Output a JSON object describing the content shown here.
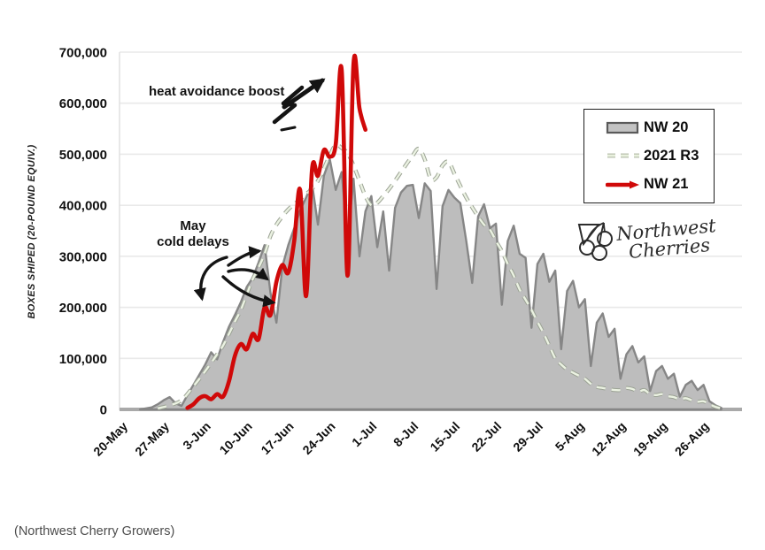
{
  "page": {
    "caption": "(Northwest Cherry Growers)"
  },
  "logo": {
    "line1": "Northwest",
    "line2": "Cherries"
  },
  "annotations": {
    "heat": "heat avoidance boost",
    "may_line1": "May",
    "may_line2": "cold delays"
  },
  "chart_data": {
    "type": "area",
    "title": "",
    "xlabel": "",
    "ylabel": "BOXES SHIPED (20-POUND EQUIV.)",
    "ylim": [
      0,
      700000
    ],
    "ytick_step": 100000,
    "yticks": [
      0,
      100000,
      200000,
      300000,
      400000,
      500000,
      600000,
      700000
    ],
    "grid": true,
    "legend_position": "upper right",
    "xticks": [
      {
        "label": "20-May",
        "day": 0
      },
      {
        "label": "27-May",
        "day": 7
      },
      {
        "label": "3-Jun",
        "day": 14
      },
      {
        "label": "10-Jun",
        "day": 21
      },
      {
        "label": "17-Jun",
        "day": 28
      },
      {
        "label": "24-Jun",
        "day": 35
      },
      {
        "label": "1-Jul",
        "day": 42
      },
      {
        "label": "8-Jul",
        "day": 49
      },
      {
        "label": "15-Jul",
        "day": 56
      },
      {
        "label": "22-Jul",
        "day": 63
      },
      {
        "label": "29-Jul",
        "day": 70
      },
      {
        "label": "5-Aug",
        "day": 77
      },
      {
        "label": "12-Aug",
        "day": 84
      },
      {
        "label": "19-Aug",
        "day": 91
      },
      {
        "label": "26-Aug",
        "day": 98
      }
    ],
    "annotations": [
      {
        "text": "heat avoidance boost",
        "target": "NW 21 late-June peaks"
      },
      {
        "text": "May cold delays",
        "lines": [
          "May",
          "cold delays"
        ],
        "target": "early-June NW 21 ramp"
      }
    ],
    "series": [
      {
        "name": "NW 20",
        "type": "area",
        "fill": "#bdbdbd",
        "stroke": "#868686",
        "smooth": false,
        "points": [
          [
            3,
            0
          ],
          [
            5,
            4000
          ],
          [
            6,
            10000
          ],
          [
            7,
            18000
          ],
          [
            8,
            24000
          ],
          [
            9,
            12000
          ],
          [
            10,
            7000
          ],
          [
            11,
            28000
          ],
          [
            12,
            48000
          ],
          [
            13,
            68000
          ],
          [
            14,
            88000
          ],
          [
            15,
            112000
          ],
          [
            16,
            98000
          ],
          [
            17,
            132000
          ],
          [
            18,
            162000
          ],
          [
            19,
            185000
          ],
          [
            20,
            210000
          ],
          [
            21,
            240000
          ],
          [
            22,
            258000
          ],
          [
            23,
            288000
          ],
          [
            24,
            322000
          ],
          [
            25,
            228000
          ],
          [
            26,
            170000
          ],
          [
            27,
            280000
          ],
          [
            28,
            322000
          ],
          [
            29,
            355000
          ],
          [
            30,
            390000
          ],
          [
            31,
            415000
          ],
          [
            32,
            442000
          ],
          [
            33,
            362000
          ],
          [
            34,
            458000
          ],
          [
            35,
            490000
          ],
          [
            36,
            430000
          ],
          [
            37,
            465000
          ],
          [
            38,
            330000
          ],
          [
            39,
            452000
          ],
          [
            40,
            300000
          ],
          [
            41,
            388000
          ],
          [
            42,
            418000
          ],
          [
            43,
            318000
          ],
          [
            44,
            388000
          ],
          [
            45,
            272000
          ],
          [
            46,
            395000
          ],
          [
            47,
            425000
          ],
          [
            48,
            438000
          ],
          [
            49,
            440000
          ],
          [
            50,
            375000
          ],
          [
            51,
            443000
          ],
          [
            52,
            428000
          ],
          [
            53,
            236000
          ],
          [
            54,
            398000
          ],
          [
            55,
            430000
          ],
          [
            56,
            415000
          ],
          [
            57,
            404000
          ],
          [
            58,
            330000
          ],
          [
            59,
            248000
          ],
          [
            60,
            378000
          ],
          [
            61,
            402000
          ],
          [
            62,
            355000
          ],
          [
            63,
            364000
          ],
          [
            64,
            205000
          ],
          [
            65,
            330000
          ],
          [
            66,
            360000
          ],
          [
            67,
            305000
          ],
          [
            68,
            297000
          ],
          [
            69,
            160000
          ],
          [
            70,
            285000
          ],
          [
            71,
            305000
          ],
          [
            72,
            250000
          ],
          [
            73,
            272000
          ],
          [
            74,
            118000
          ],
          [
            75,
            232000
          ],
          [
            76,
            252000
          ],
          [
            77,
            200000
          ],
          [
            78,
            216000
          ],
          [
            79,
            85000
          ],
          [
            80,
            170000
          ],
          [
            81,
            188000
          ],
          [
            82,
            142000
          ],
          [
            83,
            158000
          ],
          [
            84,
            60000
          ],
          [
            85,
            108000
          ],
          [
            86,
            124000
          ],
          [
            87,
            92000
          ],
          [
            88,
            104000
          ],
          [
            89,
            36000
          ],
          [
            90,
            75000
          ],
          [
            91,
            85000
          ],
          [
            92,
            60000
          ],
          [
            93,
            70000
          ],
          [
            94,
            25000
          ],
          [
            95,
            48000
          ],
          [
            96,
            56000
          ],
          [
            97,
            38000
          ],
          [
            98,
            48000
          ],
          [
            99,
            16000
          ],
          [
            100,
            8000
          ],
          [
            101,
            3000
          ]
        ]
      },
      {
        "name": "2021 R3",
        "type": "dashed-line",
        "stroke": "#9ba294",
        "overlay": "#ebf2e2",
        "smooth": true,
        "points": [
          [
            6,
            2000
          ],
          [
            8,
            8000
          ],
          [
            10,
            18000
          ],
          [
            12,
            45000
          ],
          [
            14,
            75000
          ],
          [
            16,
            108000
          ],
          [
            17,
            125000
          ],
          [
            18,
            148000
          ],
          [
            19,
            172000
          ],
          [
            20,
            195000
          ],
          [
            21,
            225000
          ],
          [
            22,
            255000
          ],
          [
            23,
            278000
          ],
          [
            24,
            305000
          ],
          [
            25,
            340000
          ],
          [
            26,
            362000
          ],
          [
            27,
            378000
          ],
          [
            28,
            392000
          ],
          [
            29,
            402000
          ],
          [
            30,
            412000
          ],
          [
            31,
            422000
          ],
          [
            32,
            432000
          ],
          [
            33,
            448000
          ],
          [
            34,
            472000
          ],
          [
            35,
            498000
          ],
          [
            36,
            518000
          ],
          [
            37,
            512000
          ],
          [
            38,
            502000
          ],
          [
            39,
            478000
          ],
          [
            40,
            448000
          ],
          [
            41,
            418000
          ],
          [
            42,
            400000
          ],
          [
            43,
            405000
          ],
          [
            44,
            418000
          ],
          [
            45,
            432000
          ],
          [
            46,
            448000
          ],
          [
            47,
            465000
          ],
          [
            48,
            482000
          ],
          [
            49,
            498000
          ],
          [
            50,
            511000
          ],
          [
            51,
            490000
          ],
          [
            52,
            452000
          ],
          [
            53,
            455000
          ],
          [
            54,
            478000
          ],
          [
            55,
            485000
          ],
          [
            56,
            462000
          ],
          [
            57,
            438000
          ],
          [
            58,
            415000
          ],
          [
            59,
            396000
          ],
          [
            60,
            378000
          ],
          [
            61,
            362000
          ],
          [
            62,
            352000
          ],
          [
            63,
            330000
          ],
          [
            64,
            310000
          ],
          [
            65,
            285000
          ],
          [
            66,
            262000
          ],
          [
            67,
            235000
          ],
          [
            68,
            215000
          ],
          [
            69,
            195000
          ],
          [
            70,
            172000
          ],
          [
            71,
            150000
          ],
          [
            72,
            125000
          ],
          [
            73,
            100000
          ],
          [
            74,
            88000
          ],
          [
            75,
            78000
          ],
          [
            76,
            72000
          ],
          [
            77,
            66000
          ],
          [
            78,
            60000
          ],
          [
            79,
            50000
          ],
          [
            80,
            44000
          ],
          [
            81,
            42000
          ],
          [
            82,
            40000
          ],
          [
            83,
            38000
          ],
          [
            84,
            38000
          ],
          [
            85,
            42000
          ],
          [
            86,
            40000
          ],
          [
            87,
            35000
          ],
          [
            88,
            38000
          ],
          [
            89,
            30000
          ],
          [
            90,
            28000
          ],
          [
            91,
            30000
          ],
          [
            92,
            26000
          ],
          [
            93,
            24000
          ],
          [
            94,
            20000
          ],
          [
            95,
            22000
          ],
          [
            96,
            18000
          ],
          [
            97,
            15000
          ],
          [
            98,
            16000
          ],
          [
            99,
            10000
          ],
          [
            100,
            5000
          ],
          [
            101,
            2000
          ]
        ]
      },
      {
        "name": "NW 21",
        "type": "line",
        "stroke": "#d00909",
        "smooth": true,
        "points": [
          [
            11,
            3000
          ],
          [
            12,
            10000
          ],
          [
            13,
            22000
          ],
          [
            14,
            26000
          ],
          [
            15,
            20000
          ],
          [
            16,
            30000
          ],
          [
            17,
            25000
          ],
          [
            18,
            55000
          ],
          [
            19,
            105000
          ],
          [
            20,
            128000
          ],
          [
            21,
            118000
          ],
          [
            22,
            148000
          ],
          [
            23,
            138000
          ],
          [
            24,
            200000
          ],
          [
            25,
            185000
          ],
          [
            26,
            250000
          ],
          [
            27,
            283000
          ],
          [
            28,
            268000
          ],
          [
            29,
            330000
          ],
          [
            30,
            430000
          ],
          [
            31,
            222000
          ],
          [
            32,
            470000
          ],
          [
            33,
            458000
          ],
          [
            34,
            508000
          ],
          [
            35,
            495000
          ],
          [
            36,
            520000
          ],
          [
            37,
            665000
          ],
          [
            38,
            262000
          ],
          [
            39,
            678000
          ],
          [
            40,
            590000
          ],
          [
            41,
            548000
          ]
        ]
      }
    ]
  }
}
